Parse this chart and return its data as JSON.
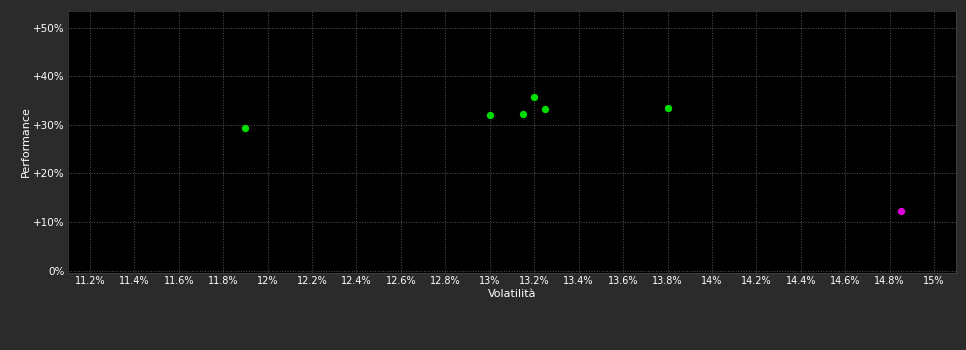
{
  "background_color": "#2b2b2b",
  "plot_bg_color": "#000000",
  "grid_color": "#555555",
  "text_color": "#ffffff",
  "xlabel": "Volatilità",
  "ylabel": "Performance",
  "xlim": [
    0.111,
    0.151
  ],
  "ylim": [
    -0.005,
    0.535
  ],
  "xticks": [
    0.112,
    0.114,
    0.116,
    0.118,
    0.12,
    0.122,
    0.124,
    0.126,
    0.128,
    0.13,
    0.132,
    0.134,
    0.136,
    0.138,
    0.14,
    0.142,
    0.144,
    0.146,
    0.148,
    0.15
  ],
  "xtick_labels": [
    "11.2%",
    "11.4%",
    "11.6%",
    "11.8%",
    "12%",
    "12.2%",
    "12.4%",
    "12.6%",
    "12.8%",
    "13%",
    "13.2%",
    "13.4%",
    "13.6%",
    "13.8%",
    "14%",
    "14.2%",
    "14.4%",
    "14.6%",
    "14.8%",
    "15%"
  ],
  "yticks": [
    0.0,
    0.1,
    0.2,
    0.3,
    0.4,
    0.5
  ],
  "ytick_labels": [
    "0%",
    "+10%",
    "+20%",
    "+30%",
    "+40%",
    "+50%"
  ],
  "green_points": [
    [
      0.119,
      0.293
    ],
    [
      0.13,
      0.32
    ],
    [
      0.1315,
      0.322
    ],
    [
      0.1325,
      0.333
    ],
    [
      0.132,
      0.358
    ],
    [
      0.138,
      0.335
    ]
  ],
  "magenta_points": [
    [
      0.1485,
      0.123
    ]
  ],
  "green_color": "#00dd00",
  "magenta_color": "#dd00dd",
  "marker_size": 28
}
